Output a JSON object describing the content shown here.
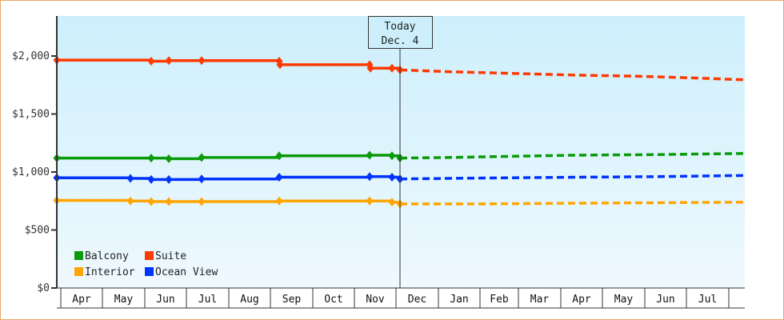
{
  "chart_data": {
    "type": "line",
    "title": "",
    "xlabel": "",
    "ylabel": "",
    "ylim": [
      0,
      2350
    ],
    "y_ticks": [
      "$0",
      "$500",
      "$1,000",
      "$1,500",
      "$2,000"
    ],
    "y_tick_values": [
      0,
      500,
      1000,
      1500,
      2000
    ],
    "x_months": [
      "Apr",
      "May",
      "Jun",
      "Jul",
      "Aug",
      "Sep",
      "Oct",
      "Nov",
      "Dec",
      "Jan",
      "Feb",
      "Mar",
      "Apr",
      "May",
      "Jun",
      "Jul"
    ],
    "today_marker": {
      "line1": "Today",
      "line2": "Dec. 4"
    },
    "legend": [
      {
        "name": "Balcony",
        "color": "#0a9a0a"
      },
      {
        "name": "Suite",
        "color": "#ff3a00"
      },
      {
        "name": "Interior",
        "color": "#ffa500"
      },
      {
        "name": "Ocean View",
        "color": "#0033ff"
      }
    ],
    "series": [
      {
        "name": "Suite",
        "color": "#ff3a00",
        "historical": [
          [
            71,
            1965
          ],
          [
            189,
            1955
          ],
          [
            211,
            1960
          ],
          [
            252,
            1960
          ],
          [
            349,
            1955
          ],
          [
            350,
            1925
          ],
          [
            462,
            1925
          ],
          [
            463,
            1895
          ],
          [
            490,
            1895
          ],
          [
            500,
            1880
          ]
        ],
        "forecast": [
          [
            500,
            1880
          ],
          [
            560,
            1865
          ],
          [
            640,
            1850
          ],
          [
            720,
            1835
          ],
          [
            800,
            1825
          ],
          [
            870,
            1810
          ],
          [
            931,
            1795
          ]
        ]
      },
      {
        "name": "Balcony",
        "color": "#0a9a0a",
        "historical": [
          [
            71,
            1120
          ],
          [
            189,
            1120
          ],
          [
            211,
            1115
          ],
          [
            252,
            1125
          ],
          [
            349,
            1140
          ],
          [
            462,
            1145
          ],
          [
            490,
            1140
          ],
          [
            500,
            1120
          ]
        ],
        "forecast": [
          [
            500,
            1120
          ],
          [
            560,
            1125
          ],
          [
            640,
            1135
          ],
          [
            720,
            1145
          ],
          [
            820,
            1150
          ],
          [
            931,
            1160
          ]
        ]
      },
      {
        "name": "Ocean View",
        "color": "#0033ff",
        "historical": [
          [
            71,
            950
          ],
          [
            163,
            945
          ],
          [
            189,
            935
          ],
          [
            211,
            935
          ],
          [
            252,
            940
          ],
          [
            349,
            955
          ],
          [
            462,
            960
          ],
          [
            490,
            955
          ],
          [
            500,
            940
          ]
        ],
        "forecast": [
          [
            500,
            940
          ],
          [
            560,
            945
          ],
          [
            640,
            950
          ],
          [
            720,
            955
          ],
          [
            820,
            960
          ],
          [
            931,
            970
          ]
        ]
      },
      {
        "name": "Interior",
        "color": "#ffa500",
        "historical": [
          [
            71,
            755
          ],
          [
            163,
            750
          ],
          [
            189,
            745
          ],
          [
            211,
            745
          ],
          [
            252,
            745
          ],
          [
            349,
            750
          ],
          [
            462,
            750
          ],
          [
            490,
            740
          ],
          [
            500,
            725
          ]
        ],
        "forecast": [
          [
            500,
            725
          ],
          [
            600,
            725
          ],
          [
            700,
            730
          ],
          [
            820,
            735
          ],
          [
            931,
            740
          ]
        ]
      }
    ],
    "legend_position": "lower-left inside plot",
    "grid": false
  }
}
